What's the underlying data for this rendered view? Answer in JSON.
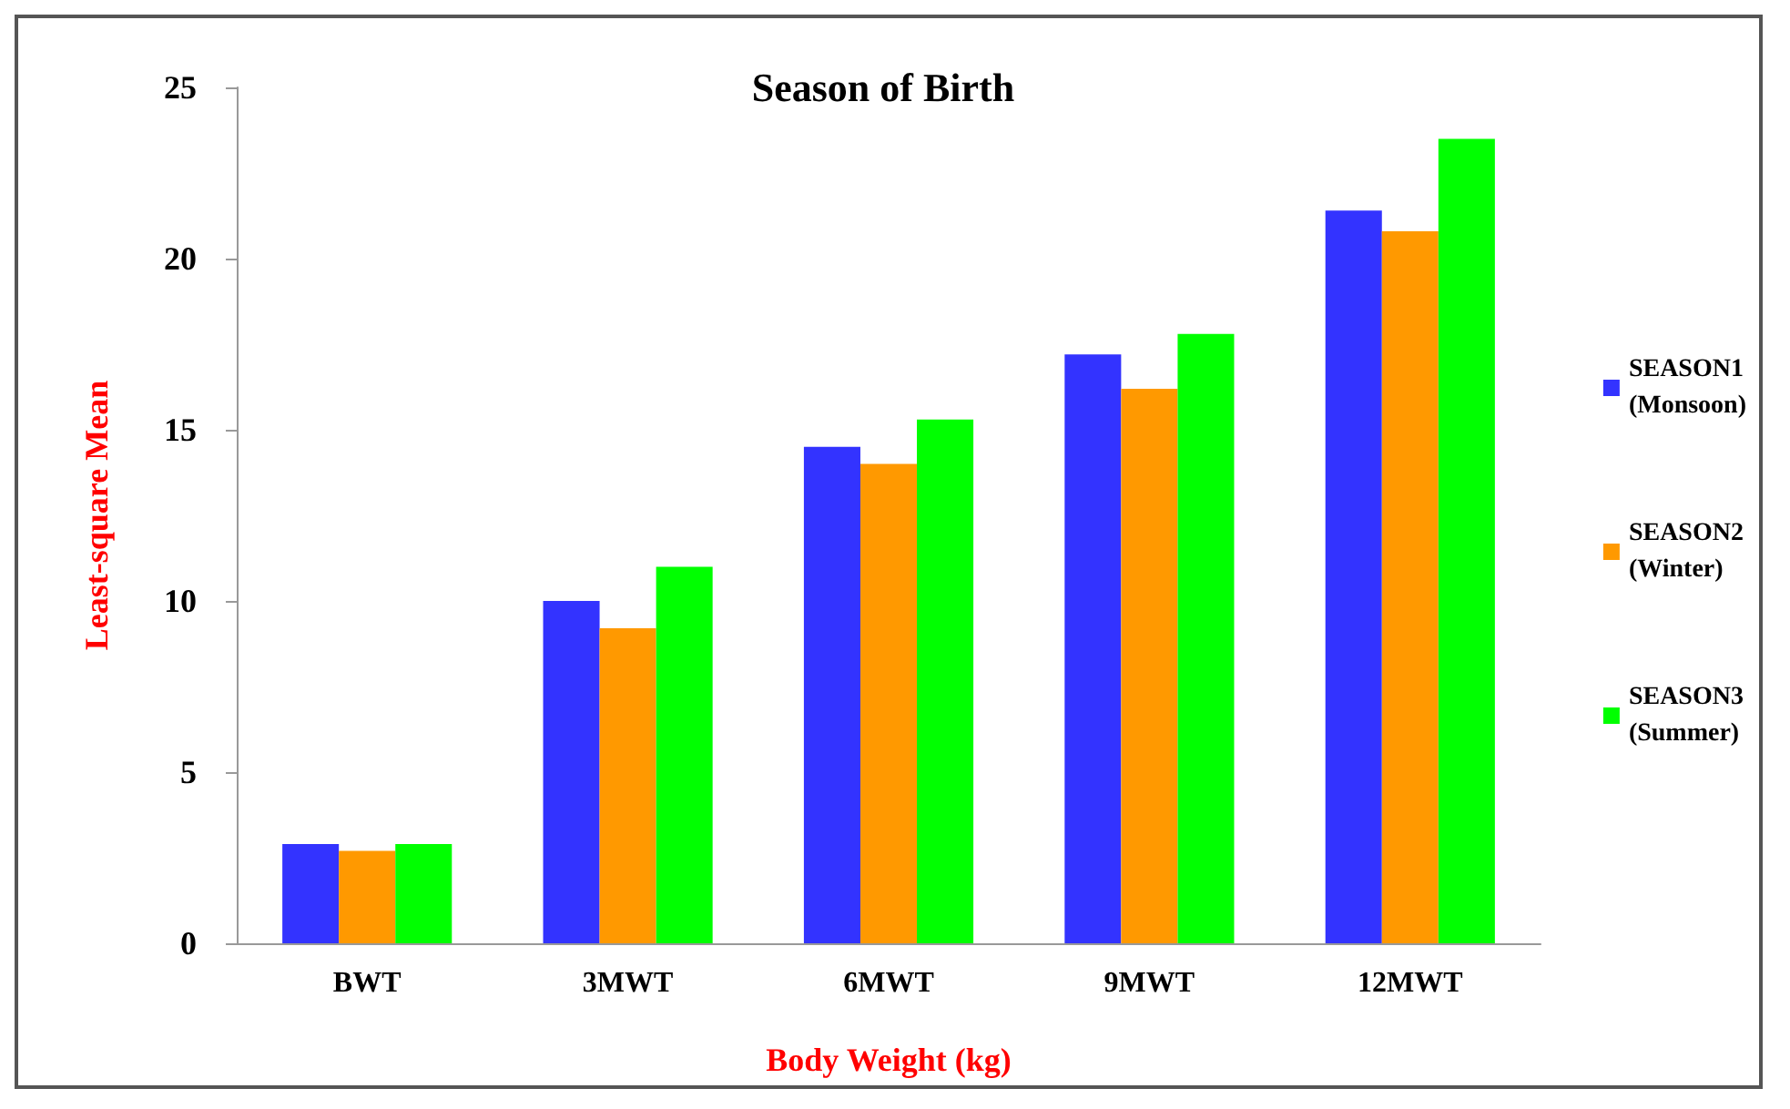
{
  "chart_data": {
    "type": "bar",
    "title": "Season of Birth",
    "xlabel": "Body Weight (kg)",
    "ylabel": "Least-square Mean",
    "categories": [
      "BWT",
      "3MWT",
      "6MWT",
      "9MWT",
      "12MWT"
    ],
    "series": [
      {
        "name": "SEASON1\n(Monsoon)",
        "color": "#3333ff",
        "values": [
          2.9,
          10.0,
          14.5,
          17.2,
          21.4
        ]
      },
      {
        "name": "SEASON2\n(Winter)",
        "color": "#ff9900",
        "values": [
          2.7,
          9.2,
          14.0,
          16.2,
          20.8
        ]
      },
      {
        "name": "SEASON3\n(Summer)",
        "color": "#00ff00",
        "values": [
          2.9,
          11.0,
          15.3,
          17.8,
          23.5
        ]
      }
    ],
    "ylim": [
      0,
      25
    ],
    "yticks": [
      0,
      5,
      10,
      15,
      20,
      25
    ],
    "grid": false,
    "legend": "right"
  }
}
